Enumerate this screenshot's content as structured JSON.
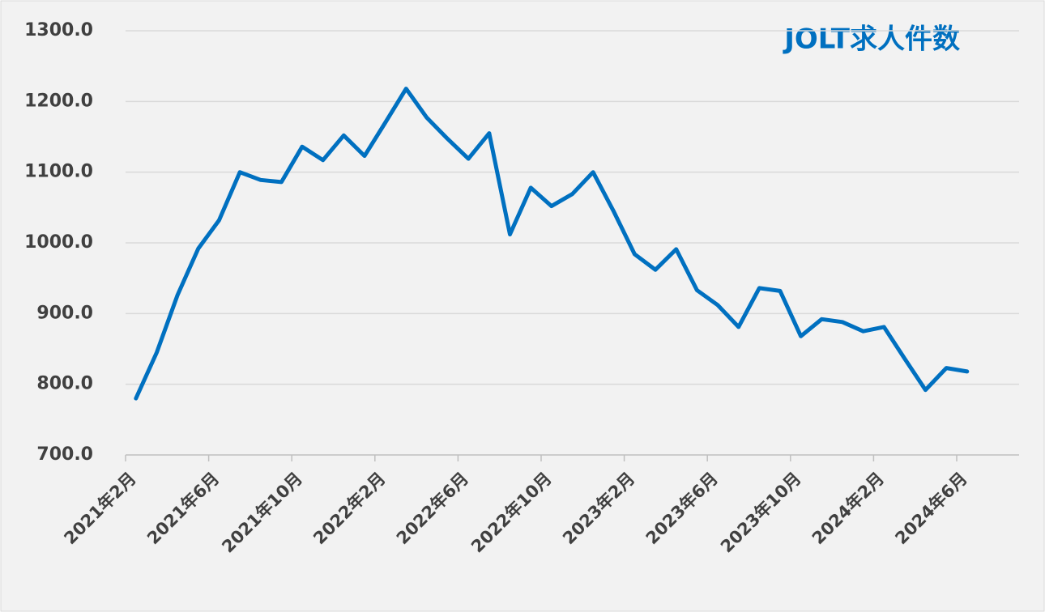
{
  "chart_data": {
    "type": "line",
    "title": "JOLT求人件数",
    "categories": [
      "2021年2月",
      null,
      null,
      null,
      "2021年6月",
      null,
      null,
      null,
      "2021年10月",
      null,
      null,
      null,
      "2022年2月",
      null,
      null,
      null,
      "2022年6月",
      null,
      null,
      null,
      "2022年10月",
      null,
      null,
      null,
      "2023年2月",
      null,
      null,
      null,
      "2023年6月",
      null,
      null,
      null,
      "2023年10月",
      null,
      null,
      null,
      "2024年2月",
      null,
      null,
      null,
      "2024年6月"
    ],
    "series": [
      {
        "name": "JOLT求人件数",
        "color": "#0070c0",
        "values": [
          780,
          845,
          926,
          992,
          1032,
          1100,
          1089,
          1086,
          1136,
          1117,
          1152,
          1123,
          1170,
          1218,
          1177,
          1147,
          1119,
          1155,
          1012,
          1078,
          1052,
          1069,
          1100,
          1044,
          984,
          962,
          991,
          933,
          912,
          881,
          936,
          932,
          868,
          892,
          888,
          875,
          881,
          836,
          792,
          823,
          818
        ]
      }
    ],
    "ylim": [
      700,
      1300
    ],
    "yticks": [
      {
        "value": 700,
        "label": "700.0"
      },
      {
        "value": 800,
        "label": "800.0"
      },
      {
        "value": 900,
        "label": "900.0"
      },
      {
        "value": 1000,
        "label": "1000.0"
      },
      {
        "value": 1100,
        "label": "1100.0"
      },
      {
        "value": 1200,
        "label": "1200.0"
      },
      {
        "value": 1300,
        "label": "1300.0"
      }
    ],
    "grid": true
  }
}
